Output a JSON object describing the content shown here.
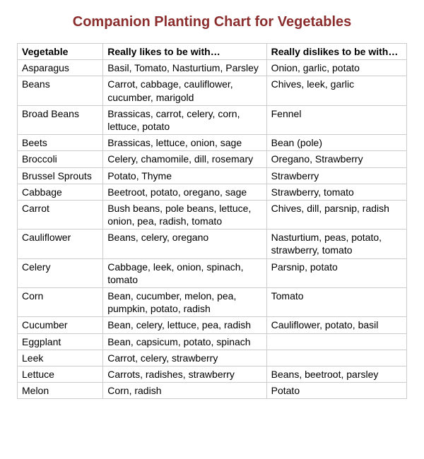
{
  "title": "Companion Planting Chart for Vegetables",
  "title_color": "#8b2d2d",
  "border_color": "#cccccc",
  "columns": [
    "Vegetable",
    "Really likes to be with…",
    "Really dislikes to be with…"
  ],
  "column_widths_pct": [
    22,
    42,
    36
  ],
  "rows": [
    {
      "veg": "Asparagus",
      "likes": "Basil, Tomato, Nasturtium, Parsley",
      "dislikes": "Onion, garlic, potato"
    },
    {
      "veg": "Beans",
      "likes": "Carrot, cabbage, cauliflower, cucumber, marigold",
      "dislikes": "Chives, leek, garlic"
    },
    {
      "veg": "Broad Beans",
      "likes": "Brassicas, carrot, celery, corn, lettuce, potato",
      "dislikes": "Fennel"
    },
    {
      "veg": "Beets",
      "likes": "Brassicas, lettuce, onion, sage",
      "dislikes": "Bean (pole)"
    },
    {
      "veg": "Broccoli",
      "likes": "Celery, chamomile, dill, rosemary",
      "dislikes": "Oregano, Strawberry"
    },
    {
      "veg": "Brussel Sprouts",
      "likes": "Potato, Thyme",
      "dislikes": "Strawberry"
    },
    {
      "veg": "Cabbage",
      "likes": "Beetroot, potato, oregano, sage",
      "dislikes": "Strawberry, tomato"
    },
    {
      "veg": "Carrot",
      "likes": "Bush beans, pole beans, lettuce, onion, pea, radish, tomato",
      "dislikes": "Chives, dill, parsnip, radish"
    },
    {
      "veg": "Cauliflower",
      "likes": "Beans, celery, oregano",
      "dislikes": "Nasturtium, peas, potato, strawberry, tomato"
    },
    {
      "veg": "Celery",
      "likes": "Cabbage, leek, onion, spinach, tomato",
      "dislikes": "Parsnip, potato"
    },
    {
      "veg": "Corn",
      "likes": "Bean, cucumber, melon, pea, pumpkin, potato, radish",
      "dislikes": "Tomato"
    },
    {
      "veg": "Cucumber",
      "likes": "Bean, celery, lettuce, pea, radish",
      "dislikes": "Cauliflower, potato, basil"
    },
    {
      "veg": "Eggplant",
      "likes": "Bean, capsicum, potato, spinach",
      "dislikes": ""
    },
    {
      "veg": "Leek",
      "likes": "Carrot, celery, strawberry",
      "dislikes": ""
    },
    {
      "veg": "Lettuce",
      "likes": "Carrots, radishes, strawberry",
      "dislikes": "Beans, beetroot, parsley"
    },
    {
      "veg": "Melon",
      "likes": "Corn, radish",
      "dislikes": "Potato"
    }
  ]
}
